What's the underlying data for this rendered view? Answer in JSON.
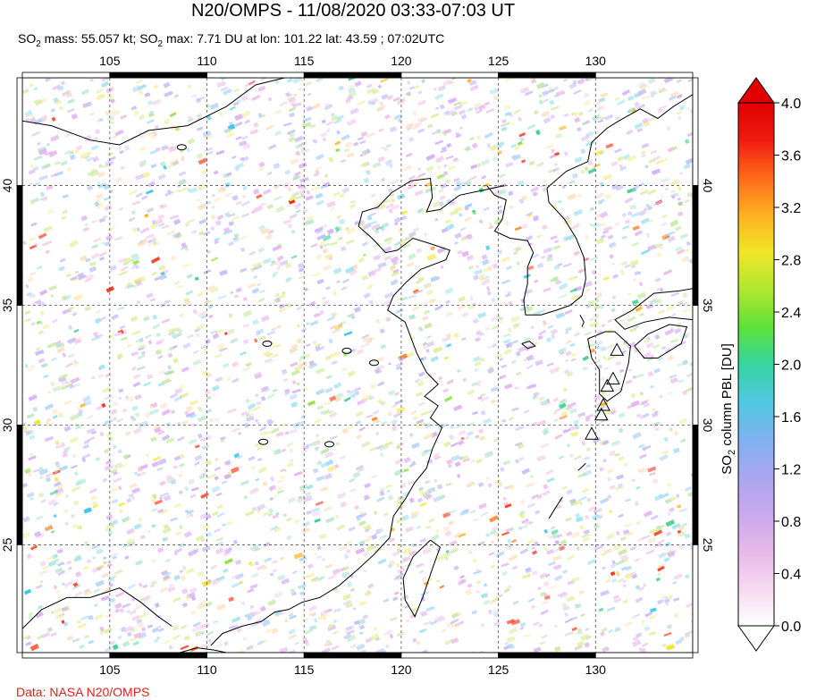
{
  "header": {
    "title": "N20/OMPS - 11/08/2020 03:33-07:03 UT",
    "subtitle_pre": "SO",
    "subtitle_mass": " mass: 55.057 kt; SO",
    "subtitle_rest": " max: 7.71 DU at lon: 101.22 lat: 43.59 ; 07:02UTC",
    "subscript": "2"
  },
  "map": {
    "lon_ticks": [
      "105",
      "110",
      "115",
      "120",
      "125",
      "130"
    ],
    "lat_ticks": [
      "40",
      "35",
      "30",
      "25"
    ],
    "lon_values": [
      105,
      110,
      115,
      120,
      125,
      130
    ],
    "lat_values": [
      40,
      35,
      30,
      25
    ],
    "lon_range": [
      100.5,
      135
    ],
    "lat_range": [
      20.5,
      44.5
    ],
    "volcano_markers": [
      {
        "lon": 131.1,
        "lat": 33.1
      },
      {
        "lon": 130.9,
        "lat": 31.9
      },
      {
        "lon": 130.6,
        "lat": 31.6
      },
      {
        "lon": 130.4,
        "lat": 30.8
      },
      {
        "lon": 130.3,
        "lat": 30.4
      },
      {
        "lon": 129.8,
        "lat": 29.6
      }
    ]
  },
  "colorbar": {
    "label_main": "SO",
    "label_sub": "2",
    "label_rest": " column PBL [DU]",
    "ticks": [
      "4.0",
      "3.6",
      "3.2",
      "2.8",
      "2.4",
      "2.0",
      "1.6",
      "1.2",
      "0.8",
      "0.4",
      "0.0"
    ],
    "min": 0.0,
    "max": 4.0,
    "colors": [
      "#ffffff",
      "#f6d9f0",
      "#e6b8e8",
      "#c9a8ee",
      "#a9a6f0",
      "#7fb2f0",
      "#4fc8e0",
      "#36d5a0",
      "#5ee03a",
      "#b0e630",
      "#f0e62a",
      "#ffb020",
      "#ff6a1a",
      "#f01c10",
      "#e00000"
    ]
  },
  "credit": "Data: NASA N20/OMPS"
}
